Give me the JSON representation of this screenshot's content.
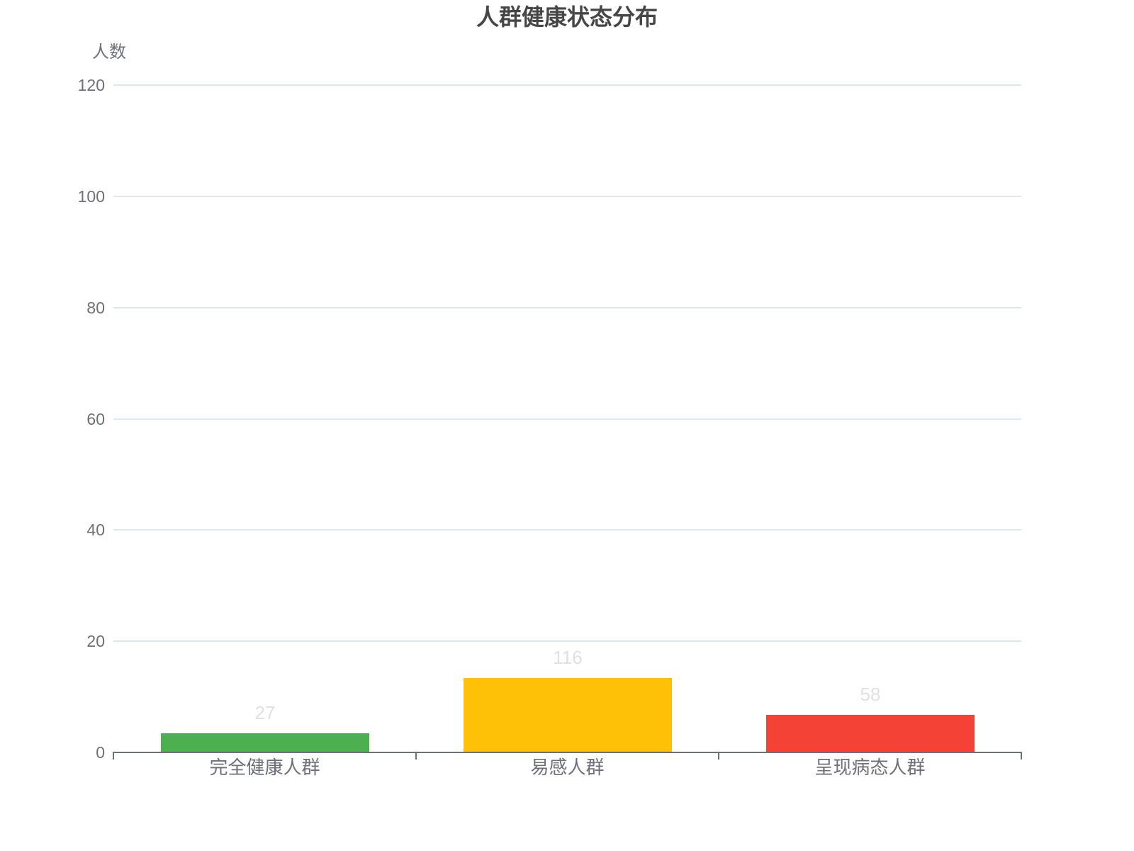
{
  "colors": {
    "background": "#FFFFFF",
    "title": "#464646",
    "axis_label": "#6E7079",
    "axis_line": "#6E7079",
    "gridline": "#E0E6F1",
    "value_label": "#E0E1E4"
  },
  "chart_data": {
    "type": "bar",
    "title": "人群健康状态分布",
    "xlabel": "",
    "ylabel": "人数",
    "categories": [
      "完全健康人群",
      "易感人群",
      "呈现病态人群"
    ],
    "series": [
      {
        "name": "人数",
        "values": [
          27,
          116,
          58
        ]
      }
    ],
    "value_labels_shown": true,
    "bar_colors": [
      "#4CAF50",
      "#FFC107",
      "#F44336"
    ],
    "ylim": [
      0,
      120
    ],
    "y_interval": 20,
    "y_ticks": [
      0,
      20,
      40,
      60,
      80,
      100,
      120
    ],
    "grid": "horizontal",
    "legend": "none",
    "rendered_bar_value_equivalents": [
      3.3,
      13.3,
      6.6
    ]
  }
}
